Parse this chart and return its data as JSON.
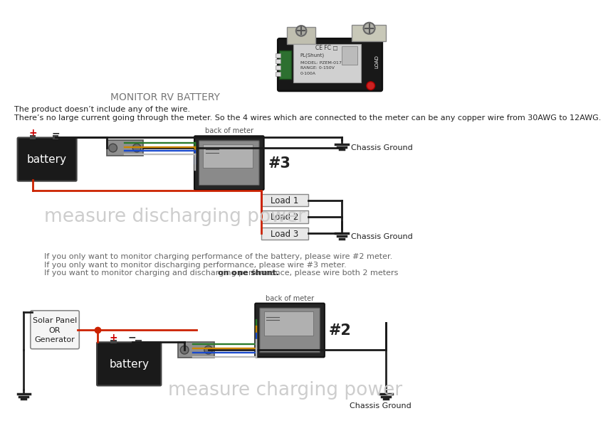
{
  "title": "MONITOR RV BATTERY",
  "bg_color": "#ffffff",
  "text_line1": "The product doesn’t include any of the wire.",
  "text_line2": "There’s no large current going through the meter. So the 4 wires which are connected to the meter can be any copper wire from 30AWG to 12AWG.",
  "note_line1": "If you only want to monitor charging performance of the battery, please wire #2 meter.",
  "note_line2": "If you only want to monitor discharging performance, please wire #3 meter.",
  "note_line3_plain": "If you want to monitor charging and discharging performance, please wire both 2 meters ",
  "note_line3_bold": "on one shunt.",
  "diagram1_label": "measure discharging power",
  "diagram2_label": "measure charging power",
  "meter3_label": "#3",
  "meter2_label": "#2",
  "back_of_meter": "back of meter",
  "chassis_ground": "Chassis Ground",
  "battery_label": "battery",
  "load1": "Load 1",
  "load2": "Load 2",
  "load3": "Load 3",
  "solar_label": "Solar Panel\nOR\nGenerator",
  "wire_red": "#cc2200",
  "wire_black": "#1a1a1a",
  "wire_green": "#2a7a2a",
  "wire_yellow": "#cc8800",
  "wire_blue": "#1a4acc",
  "battery_color": "#1a1a1a",
  "meter_color": "#252525",
  "shunt_color": "#909090",
  "load_box_color": "#e8e8e8"
}
